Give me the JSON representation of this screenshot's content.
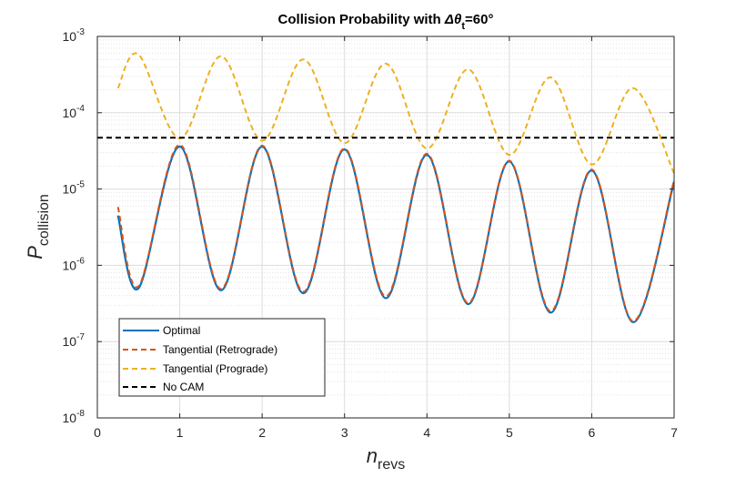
{
  "chart_data": {
    "type": "line",
    "title": {
      "prefix": "Collision Probability with ",
      "symbol": "Δθ",
      "subscript": "t",
      "suffix": "=60°"
    },
    "xlabel": {
      "main": "n",
      "subscript": "revs"
    },
    "ylabel": {
      "main": "P",
      "subscript": "collision"
    },
    "x_scale": "linear",
    "y_scale": "log",
    "xlim": [
      0,
      7
    ],
    "ylim": [
      1e-08,
      0.001
    ],
    "x_ticks": [
      0,
      1,
      2,
      3,
      4,
      5,
      6,
      7
    ],
    "x_tick_labels": [
      "0",
      "1",
      "2",
      "3",
      "4",
      "5",
      "6",
      "7"
    ],
    "y_tick_base": "10",
    "y_tick_exponents": [
      "-8",
      "-7",
      "-6",
      "-5",
      "-4",
      "-3"
    ],
    "y_tick_values": [
      1e-08,
      1e-07,
      1e-06,
      1e-05,
      0.0001,
      0.001
    ],
    "grid": true,
    "minor_grid": true,
    "legend_position": "bottom-left",
    "x_points": [
      0.25,
      0.5,
      1.0,
      1.5,
      2.0,
      2.5,
      3.0,
      3.5,
      4.0,
      4.5,
      5.0,
      5.5,
      6.0,
      6.5,
      7.0
    ],
    "series": [
      {
        "name": "Optimal",
        "color": "#0072BD",
        "style": "solid",
        "values": [
          4.5e-06,
          5e-07,
          3.6e-05,
          4.7e-07,
          3.6e-05,
          4.3e-07,
          3.3e-05,
          3.7e-07,
          2.8e-05,
          3.1e-07,
          2.3e-05,
          2.4e-07,
          1.75e-05,
          1.8e-07,
          1.25e-05
        ]
      },
      {
        "name": "Tangential (Retrograde)",
        "color": "#D95319",
        "style": "dashed",
        "values": [
          5.8e-06,
          5.3e-07,
          3.8e-05,
          4.9e-07,
          3.7e-05,
          4.5e-07,
          3.4e-05,
          3.9e-07,
          2.9e-05,
          3.2e-07,
          2.35e-05,
          2.5e-07,
          1.8e-05,
          1.85e-07,
          1.3e-05
        ]
      },
      {
        "name": "Tangential (Prograde)",
        "color": "#EDB120",
        "style": "dashed",
        "values": [
          0.00021,
          0.00058,
          4.6e-05,
          0.00055,
          4.3e-05,
          0.0005,
          4e-05,
          0.00044,
          3.4e-05,
          0.00037,
          2.8e-05,
          0.00029,
          2.1e-05,
          0.00021,
          1.6e-05
        ]
      },
      {
        "name": "No CAM",
        "color": "#000000",
        "style": "dashed",
        "constant": 4.7e-05
      }
    ]
  }
}
